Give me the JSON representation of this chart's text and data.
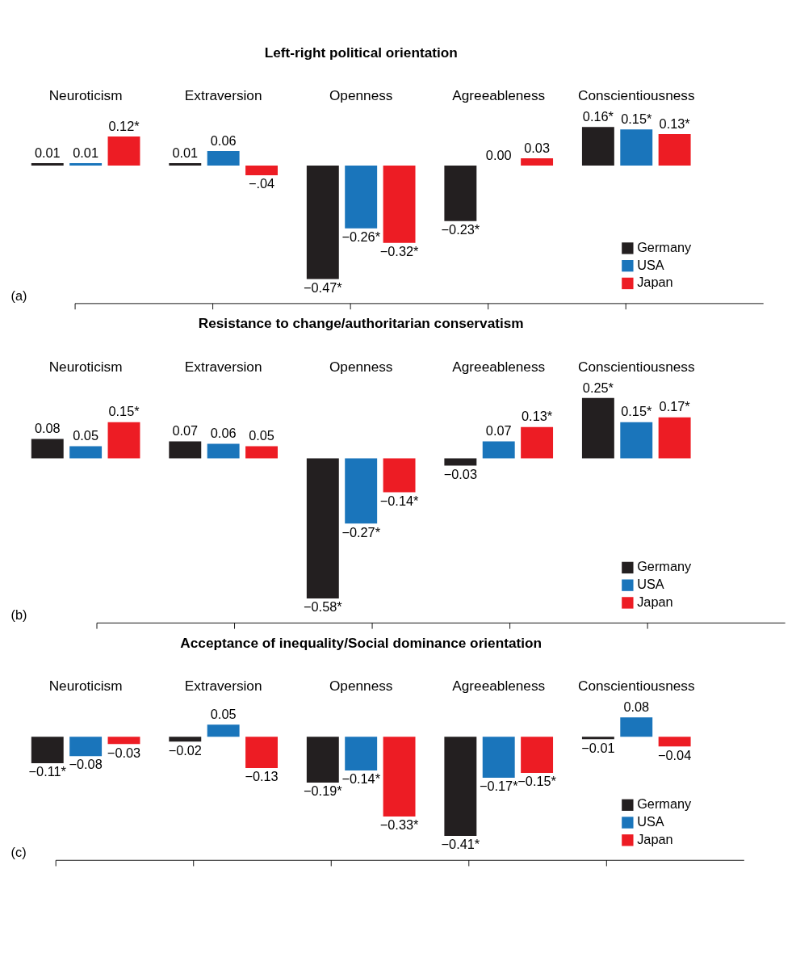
{
  "chart_data": [
    {
      "type": "bar",
      "title": "Left-right political orientation",
      "categories": [
        "Neuroticism",
        "Extraversion",
        "Openness",
        "Agreeableness",
        "Conscientiousness"
      ],
      "annotations": [
        "(a)"
      ],
      "legend": "bottom right",
      "grid": false,
      "data_labels": false,
      "series": [
        {
          "name": "Germany",
          "color": "#231f20",
          "values": [
            0.01,
            0.01,
            -0.47,
            -0.23,
            0.16
          ],
          "value_labels": [
            "0.01",
            "0.01",
            "−0.47*",
            "−0.23*",
            "0.16*"
          ]
        },
        {
          "name": "USA",
          "color": "#1a75bb",
          "values": [
            0.01,
            0.06,
            -0.26,
            0.0,
            0.15
          ],
          "value_labels": [
            "0.01",
            "0.06",
            "−0.26*",
            "0.00",
            "0.15*"
          ]
        },
        {
          "name": "Japan",
          "color": "#ed1c24",
          "values": [
            0.12,
            -0.04,
            -0.32,
            0.03,
            0.13
          ],
          "value_labels": [
            "0.12*",
            "−.04",
            "−0.32*",
            "0.03",
            "0.13*"
          ]
        }
      ]
    },
    {
      "type": "bar",
      "title": "Resistance to change/authoritarian conservatism",
      "categories": [
        "Neuroticism",
        "Extraversion",
        "Openness",
        "Agreeableness",
        "Conscientiousness"
      ],
      "annotations": [
        "(b)"
      ],
      "legend": "bottom right",
      "grid": false,
      "data_labels": false,
      "series": [
        {
          "name": "Germany",
          "color": "#231f20",
          "values": [
            0.08,
            0.07,
            -0.58,
            -0.03,
            0.25
          ],
          "value_labels": [
            "0.08",
            "0.07",
            "−0.58*",
            "−0.03",
            "0.25*"
          ]
        },
        {
          "name": "USA",
          "color": "#1a75bb",
          "values": [
            0.05,
            0.06,
            -0.27,
            0.07,
            0.15
          ],
          "value_labels": [
            "0.05",
            "0.06",
            "−0.27*",
            "0.07",
            "0.15*"
          ]
        },
        {
          "name": "Japan",
          "color": "#ed1c24",
          "values": [
            0.15,
            0.05,
            -0.14,
            0.13,
            0.17
          ],
          "value_labels": [
            "0.15*",
            "0.05",
            "−0.14*",
            "0.13*",
            "0.17*"
          ]
        }
      ]
    },
    {
      "type": "bar",
      "title": "Acceptance of inequality/Social dominance orientation",
      "categories": [
        "Neuroticism",
        "Extraversion",
        "Openness",
        "Agreeableness",
        "Conscientiousness"
      ],
      "annotations": [
        "(c)"
      ],
      "legend": "bottom right",
      "grid": false,
      "data_labels": false,
      "series": [
        {
          "name": "Germany",
          "color": "#231f20",
          "values": [
            -0.11,
            -0.02,
            -0.19,
            -0.41,
            -0.01
          ],
          "value_labels": [
            "−0.11*",
            "−0.02",
            "−0.19*",
            "−0.41*",
            "−0.01"
          ]
        },
        {
          "name": "USA",
          "color": "#1a75bb",
          "values": [
            -0.08,
            0.05,
            -0.14,
            -0.17,
            0.08
          ],
          "value_labels": [
            "−0.08",
            "0.05",
            "−0.14*",
            "−0.17*",
            "0.08"
          ]
        },
        {
          "name": "Japan",
          "color": "#ed1c24",
          "values": [
            -0.03,
            -0.13,
            -0.33,
            -0.15,
            -0.04
          ],
          "value_labels": [
            "−0.03",
            "−0.13",
            "−0.33*",
            "−0.15*",
            "−0.04"
          ]
        }
      ]
    }
  ]
}
